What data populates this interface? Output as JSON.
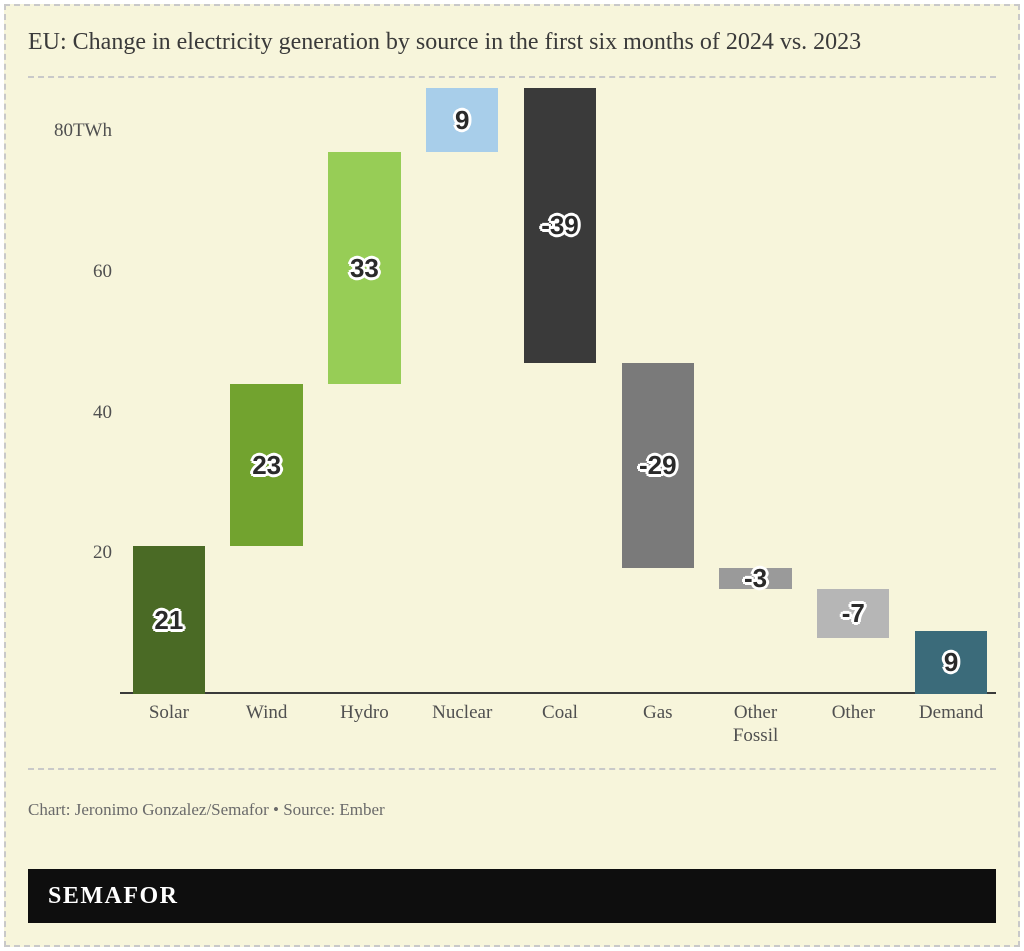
{
  "title": "EU: Change in electricity generation by source in the first six months of 2024 vs. 2023",
  "credit": "Chart: Jeronimo Gonzalez/Semafor • Source: Ember",
  "brand": "SEMAFOR",
  "chart": {
    "type": "waterfall",
    "background_color": "#f7f5db",
    "border_color": "#c9c9c9",
    "axis_color": "#3a3a3a",
    "tick_font_size": 19,
    "tick_color": "#505050",
    "bar_label_font_size": 26,
    "bar_label_font_weight": 800,
    "unit_suffix": "TWh",
    "ylim": [
      0,
      86
    ],
    "yticks": [
      20,
      40,
      60,
      80
    ],
    "ytick_labels": [
      "20",
      "40",
      "60",
      "80TWh"
    ],
    "bar_width_ratio": 0.74,
    "categories": [
      "Solar",
      "Wind",
      "Hydro",
      "Nuclear",
      "Coal",
      "Gas",
      "Other\nFossil",
      "Other",
      "Demand"
    ],
    "values": [
      21,
      23,
      33,
      9,
      -39,
      -29,
      -3,
      -7,
      9
    ],
    "colors": [
      "#4a6a25",
      "#72a32f",
      "#97cd56",
      "#a8ceea",
      "#3a3a3a",
      "#7a7a7a",
      "#9a9a9a",
      "#b6b6b6",
      "#3b6b7a"
    ],
    "final_is_total": true
  }
}
